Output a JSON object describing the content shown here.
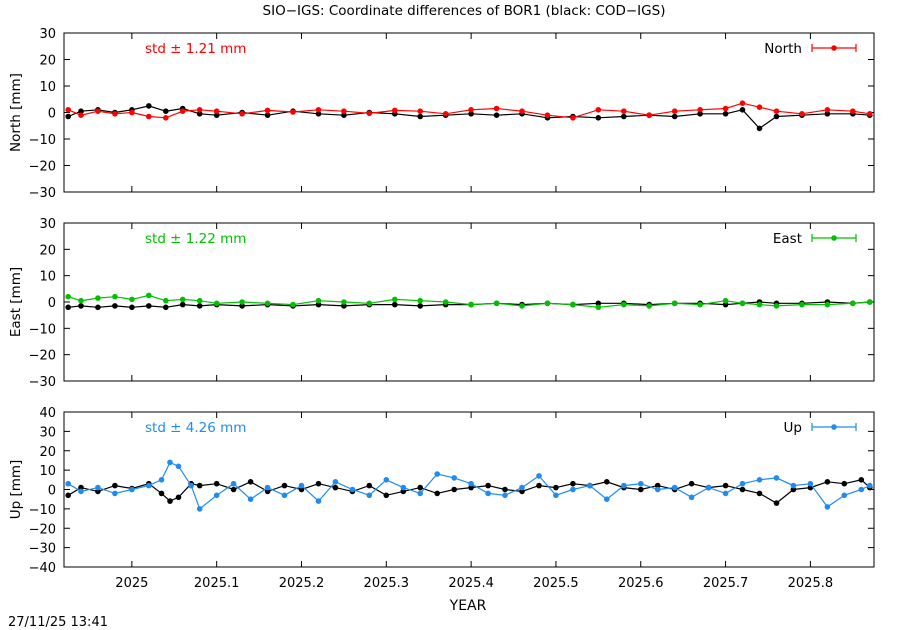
{
  "title": "SIO−IGS: Coordinate differences of BOR1 (black: COD−IGS)",
  "footer_timestamp": "27/11/25 13:41",
  "xlabel": "YEAR",
  "x_ticks": [
    "2025",
    "2025.1",
    "2025.2",
    "2025.3",
    "2025.4",
    "2025.5",
    "2025.6",
    "2025.7",
    "2025.8"
  ],
  "chart_data": [
    {
      "type": "scatter",
      "ylabel": "North [mm]",
      "legend_label": "North",
      "legend_position": "top-right",
      "std_label": "std ± 1.21 mm",
      "color": "#ff0000",
      "reference_color": "#000000",
      "xlim": [
        2024.92,
        2025.875
      ],
      "ylim": [
        -30,
        30
      ],
      "y_ticks": [
        "30",
        "20",
        "10",
        "0",
        "−10",
        "−20",
        "−30"
      ],
      "series": [
        {
          "x": [
            2024.925,
            2024.94,
            2024.96,
            2024.98,
            2025.0,
            2025.02,
            2025.04,
            2025.06,
            2025.08,
            2025.1,
            2025.13,
            2025.16,
            2025.19,
            2025.22,
            2025.25,
            2025.28,
            2025.31,
            2025.34,
            2025.37,
            2025.4,
            2025.43,
            2025.46,
            2025.49,
            2025.52,
            2025.55,
            2025.58,
            2025.61,
            2025.64,
            2025.67,
            2025.7,
            2025.72,
            2025.74,
            2025.76,
            2025.79,
            2025.82,
            2025.85,
            2025.87
          ],
          "values": [
            1.0,
            -1.0,
            0.5,
            -0.5,
            0.0,
            -1.5,
            -2.0,
            0.5,
            1.0,
            0.5,
            -0.5,
            0.8,
            0.2,
            1.0,
            0.5,
            -0.3,
            0.8,
            0.5,
            -0.5,
            1.0,
            1.5,
            0.5,
            -1.0,
            -2.0,
            1.0,
            0.5,
            -1.0,
            0.5,
            1.0,
            1.5,
            3.5,
            2.0,
            0.5,
            -0.5,
            1.0,
            0.5,
            -0.5
          ]
        },
        {
          "x": [
            2024.925,
            2024.94,
            2024.96,
            2024.98,
            2025.0,
            2025.02,
            2025.04,
            2025.06,
            2025.08,
            2025.1,
            2025.13,
            2025.16,
            2025.19,
            2025.22,
            2025.25,
            2025.28,
            2025.31,
            2025.34,
            2025.37,
            2025.4,
            2025.43,
            2025.46,
            2025.49,
            2025.52,
            2025.55,
            2025.58,
            2025.61,
            2025.64,
            2025.67,
            2025.7,
            2025.72,
            2025.74,
            2025.76,
            2025.79,
            2025.82,
            2025.85,
            2025.87
          ],
          "values": [
            -1.5,
            0.5,
            1.0,
            0.0,
            1.0,
            2.5,
            0.5,
            1.5,
            -0.5,
            -1.0,
            0.0,
            -1.0,
            0.5,
            -0.5,
            -1.0,
            0.0,
            -0.5,
            -1.5,
            -1.0,
            -0.5,
            -1.0,
            -0.5,
            -2.0,
            -1.5,
            -2.0,
            -1.5,
            -1.0,
            -1.5,
            -0.5,
            -0.5,
            1.0,
            -6.0,
            -1.5,
            -1.0,
            -0.5,
            -0.5,
            -1.0
          ]
        }
      ]
    },
    {
      "type": "scatter",
      "ylabel": "East [mm]",
      "legend_label": "East",
      "legend_position": "top-right",
      "std_label": "std ± 1.22 mm",
      "color": "#00c000",
      "reference_color": "#000000",
      "xlim": [
        2024.92,
        2025.875
      ],
      "ylim": [
        -30,
        30
      ],
      "y_ticks": [
        "30",
        "20",
        "10",
        "0",
        "−10",
        "−20",
        "−30"
      ],
      "series": [
        {
          "x": [
            2024.925,
            2024.94,
            2024.96,
            2024.98,
            2025.0,
            2025.02,
            2025.04,
            2025.06,
            2025.08,
            2025.1,
            2025.13,
            2025.16,
            2025.19,
            2025.22,
            2025.25,
            2025.28,
            2025.31,
            2025.34,
            2025.37,
            2025.4,
            2025.43,
            2025.46,
            2025.49,
            2025.52,
            2025.55,
            2025.58,
            2025.61,
            2025.64,
            2025.67,
            2025.7,
            2025.72,
            2025.74,
            2025.76,
            2025.79,
            2025.82,
            2025.85,
            2025.87
          ],
          "values": [
            2.0,
            0.5,
            1.5,
            2.0,
            1.0,
            2.5,
            0.5,
            1.0,
            0.5,
            -0.5,
            0.0,
            -0.5,
            -1.0,
            0.5,
            0.0,
            -0.5,
            1.0,
            0.5,
            0.0,
            -1.0,
            -0.5,
            -1.5,
            -0.5,
            -1.0,
            -2.0,
            -1.0,
            -1.5,
            -0.5,
            -1.0,
            0.5,
            -0.5,
            -1.0,
            -1.5,
            -1.0,
            -1.0,
            -0.5,
            0.0
          ]
        },
        {
          "x": [
            2024.925,
            2024.94,
            2024.96,
            2024.98,
            2025.0,
            2025.02,
            2025.04,
            2025.06,
            2025.08,
            2025.1,
            2025.13,
            2025.16,
            2025.19,
            2025.22,
            2025.25,
            2025.28,
            2025.31,
            2025.34,
            2025.37,
            2025.4,
            2025.43,
            2025.46,
            2025.49,
            2025.52,
            2025.55,
            2025.58,
            2025.61,
            2025.64,
            2025.67,
            2025.7,
            2025.72,
            2025.74,
            2025.76,
            2025.79,
            2025.82,
            2025.85,
            2025.87
          ],
          "values": [
            -2.0,
            -1.5,
            -2.0,
            -1.5,
            -2.0,
            -1.5,
            -2.0,
            -1.0,
            -1.5,
            -1.0,
            -1.5,
            -1.0,
            -1.5,
            -1.0,
            -1.5,
            -1.0,
            -1.0,
            -1.5,
            -1.0,
            -1.0,
            -0.5,
            -1.0,
            -0.5,
            -1.0,
            -0.5,
            -0.5,
            -1.0,
            -0.5,
            -0.5,
            -1.0,
            -0.5,
            0.0,
            -0.5,
            -0.5,
            0.0,
            -0.5,
            0.0
          ]
        }
      ]
    },
    {
      "type": "scatter",
      "ylabel": "Up [mm]",
      "legend_label": "Up",
      "legend_position": "top-right",
      "std_label": "std ± 4.26 mm",
      "color": "#1e8cf0",
      "reference_color": "#000000",
      "xlim": [
        2024.92,
        2025.875
      ],
      "ylim": [
        -40,
        40
      ],
      "y_ticks": [
        "40",
        "30",
        "20",
        "10",
        "0",
        "−10",
        "−20",
        "−30",
        "−40"
      ],
      "series": [
        {
          "x": [
            2024.925,
            2024.94,
            2024.96,
            2024.98,
            2025.0,
            2025.02,
            2025.035,
            2025.045,
            2025.055,
            2025.07,
            2025.08,
            2025.1,
            2025.12,
            2025.14,
            2025.16,
            2025.18,
            2025.2,
            2025.22,
            2025.24,
            2025.26,
            2025.28,
            2025.3,
            2025.32,
            2025.34,
            2025.36,
            2025.38,
            2025.4,
            2025.42,
            2025.44,
            2025.46,
            2025.48,
            2025.5,
            2025.52,
            2025.54,
            2025.56,
            2025.58,
            2025.6,
            2025.62,
            2025.64,
            2025.66,
            2025.68,
            2025.7,
            2025.72,
            2025.74,
            2025.76,
            2025.78,
            2025.8,
            2025.82,
            2025.84,
            2025.86,
            2025.87
          ],
          "values": [
            3.0,
            -1.0,
            1.0,
            -2.0,
            0.0,
            2.0,
            5.0,
            14.0,
            12.0,
            2.0,
            -10.0,
            -3.0,
            3.0,
            -5.0,
            1.0,
            -3.0,
            2.0,
            -6.0,
            4.0,
            0.0,
            -3.0,
            5.0,
            1.0,
            -2.0,
            8.0,
            6.0,
            3.0,
            -2.0,
            -3.0,
            1.0,
            7.0,
            -3.0,
            0.0,
            2.0,
            -5.0,
            2.0,
            3.0,
            0.0,
            1.0,
            -4.0,
            1.0,
            -2.0,
            3.0,
            5.0,
            6.0,
            2.0,
            3.0,
            -9.0,
            -3.0,
            0.0,
            2.0
          ]
        },
        {
          "x": [
            2024.925,
            2024.94,
            2024.96,
            2024.98,
            2025.0,
            2025.02,
            2025.035,
            2025.045,
            2025.055,
            2025.07,
            2025.08,
            2025.1,
            2025.12,
            2025.14,
            2025.16,
            2025.18,
            2025.2,
            2025.22,
            2025.24,
            2025.26,
            2025.28,
            2025.3,
            2025.32,
            2025.34,
            2025.36,
            2025.38,
            2025.4,
            2025.42,
            2025.44,
            2025.46,
            2025.48,
            2025.5,
            2025.52,
            2025.54,
            2025.56,
            2025.58,
            2025.6,
            2025.62,
            2025.64,
            2025.66,
            2025.68,
            2025.7,
            2025.72,
            2025.74,
            2025.76,
            2025.78,
            2025.8,
            2025.82,
            2025.84,
            2025.86,
            2025.87
          ],
          "values": [
            -3.0,
            1.0,
            -1.0,
            2.0,
            0.5,
            3.0,
            -2.0,
            -6.0,
            -4.0,
            3.0,
            2.0,
            3.0,
            0.0,
            4.0,
            -1.0,
            2.0,
            0.0,
            3.0,
            1.0,
            -1.0,
            2.0,
            -3.0,
            -1.0,
            1.0,
            -2.0,
            0.0,
            1.0,
            2.0,
            0.0,
            -1.0,
            2.0,
            1.0,
            3.0,
            2.0,
            4.0,
            1.0,
            0.0,
            2.0,
            0.0,
            3.0,
            1.0,
            2.0,
            0.0,
            -2.0,
            -7.0,
            0.0,
            1.0,
            4.0,
            3.0,
            5.0,
            1.0
          ]
        }
      ]
    }
  ]
}
